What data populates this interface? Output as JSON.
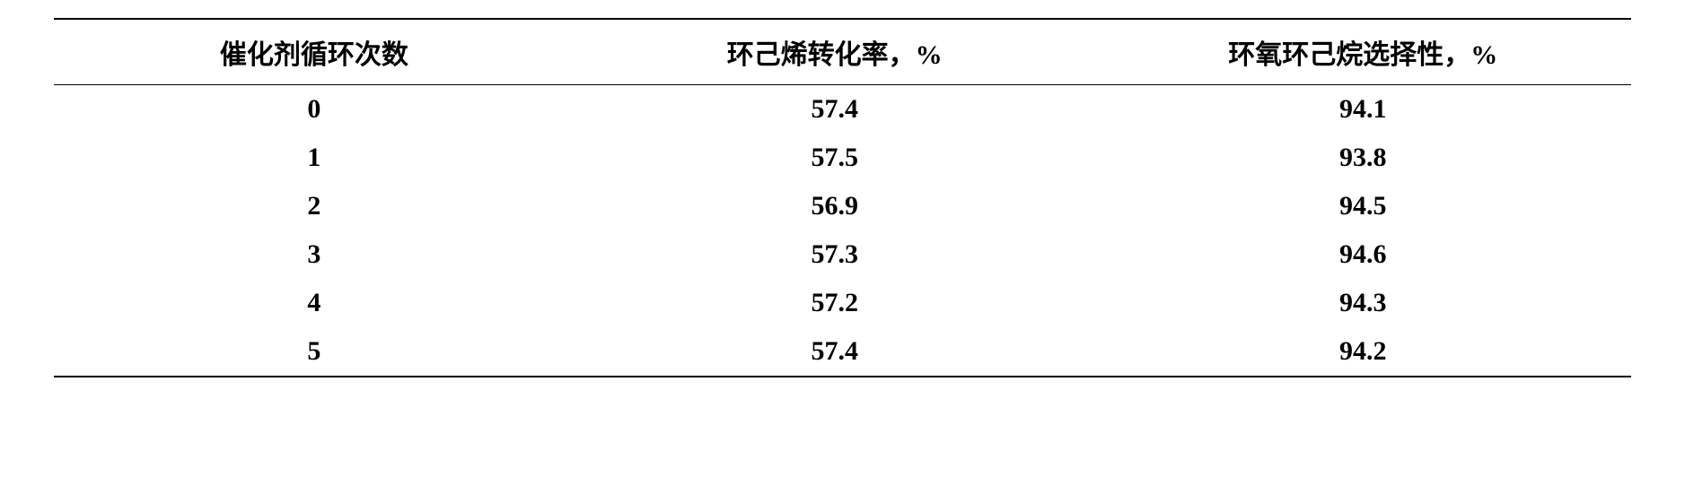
{
  "table": {
    "columns": [
      "催化剂循环次数",
      "环己烯转化率，%",
      "环氧环己烷选择性，%"
    ],
    "rows": [
      [
        "0",
        "57.4",
        "94.1"
      ],
      [
        "1",
        "57.5",
        "93.8"
      ],
      [
        "2",
        "56.9",
        "94.5"
      ],
      [
        "3",
        "57.3",
        "94.6"
      ],
      [
        "4",
        "57.2",
        "94.3"
      ],
      [
        "5",
        "57.4",
        "94.2"
      ]
    ],
    "header_fontsize": 30,
    "cell_fontsize": 30,
    "border_color": "#000000",
    "background_color": "#ffffff",
    "text_color": "#000000",
    "column_widths": [
      "33%",
      "33%",
      "34%"
    ],
    "row_padding": "10px"
  }
}
